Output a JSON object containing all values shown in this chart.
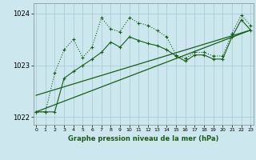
{
  "title": "Graphe pression niveau de la mer (hPa)",
  "background_color": "#cce8ee",
  "grid_color": "#aacdd6",
  "line_color": "#1a5c1a",
  "x_values": [
    0,
    1,
    2,
    3,
    4,
    5,
    6,
    7,
    8,
    9,
    10,
    11,
    12,
    13,
    14,
    15,
    16,
    17,
    18,
    19,
    20,
    21,
    22,
    23
  ],
  "y_jagged": [
    1022.1,
    1022.1,
    1022.85,
    1023.3,
    1023.5,
    1023.15,
    1023.35,
    1023.92,
    1023.7,
    1023.65,
    1023.92,
    1023.82,
    1023.77,
    1023.67,
    1023.55,
    1023.2,
    1023.13,
    1023.25,
    1023.25,
    1023.18,
    1023.18,
    1023.62,
    1023.97,
    1023.77
  ],
  "y_smooth": [
    1022.1,
    1022.1,
    1022.1,
    1022.75,
    1022.88,
    1023.0,
    1023.12,
    1023.25,
    1023.45,
    1023.35,
    1023.55,
    1023.48,
    1023.42,
    1023.38,
    1023.3,
    1023.18,
    1023.08,
    1023.2,
    1023.2,
    1023.12,
    1023.12,
    1023.55,
    1023.88,
    1023.68
  ],
  "trend1_x": [
    0,
    23
  ],
  "trend1_y": [
    1022.1,
    1023.68
  ],
  "trend2_x": [
    0,
    23
  ],
  "trend2_y": [
    1022.42,
    1023.68
  ],
  "ylim": [
    1021.85,
    1024.2
  ],
  "yticks": [
    1022,
    1023,
    1024
  ],
  "xlim": [
    -0.3,
    23.3
  ]
}
